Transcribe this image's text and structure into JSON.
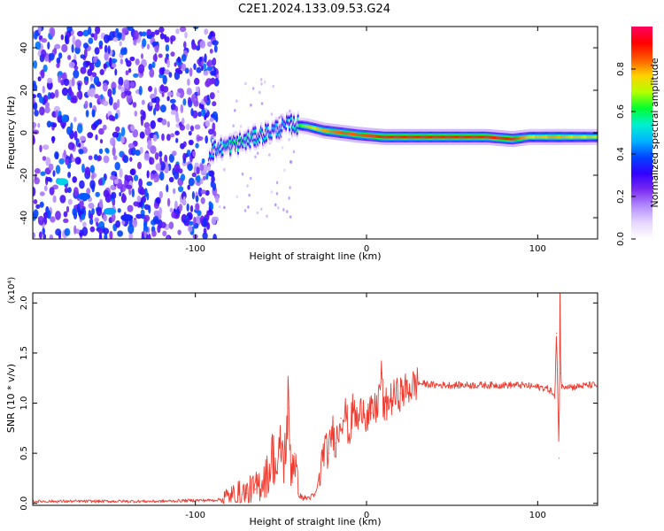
{
  "title": "C2E1.2024.133.09.53.G24",
  "chart_data": [
    {
      "type": "heatmap",
      "xlabel": "Height of straight line (km)",
      "ylabel": "Frequency (Hz)",
      "xlim": [
        -195,
        135
      ],
      "ylim": [
        -50,
        50
      ],
      "x_ticks": [
        -100,
        0,
        100
      ],
      "x_tick_labels": [
        "-100",
        "0",
        "100"
      ],
      "y_ticks": [
        -40,
        -20,
        0,
        20,
        40
      ],
      "y_tick_labels": [
        "-40",
        "-20",
        "0",
        "20",
        "40"
      ],
      "colorbar": {
        "label": "Normalized spectral amplitude",
        "range": [
          0,
          1
        ],
        "ticks": [
          0.0,
          0.2,
          0.4,
          0.6,
          0.8
        ],
        "tick_labels": [
          "0.0",
          "0.2",
          "0.4",
          "0.6",
          "0.8"
        ],
        "colors": [
          "#ffffff",
          "#e6d6ff",
          "#b38cff",
          "#7a2cf0",
          "#3300ff",
          "#0044ff",
          "#00b4ff",
          "#00f0d0",
          "#00ff30",
          "#b4ff00",
          "#ffd200",
          "#ff5a00",
          "#ff0000",
          "#ff0060"
        ]
      },
      "noise_region": {
        "x_from": -195,
        "x_to": -87,
        "freq_from": -50,
        "freq_to": 50,
        "amplitude": 0.3
      },
      "signal_track": [
        {
          "x": -92,
          "freq": -9,
          "amplitude": 0.45
        },
        {
          "x": -85,
          "freq": -7,
          "amplitude": 0.55
        },
        {
          "x": -75,
          "freq": -5,
          "amplitude": 0.6
        },
        {
          "x": -65,
          "freq": -2,
          "amplitude": 0.55
        },
        {
          "x": -55,
          "freq": 1,
          "amplitude": 0.5
        },
        {
          "x": -45,
          "freq": 4,
          "amplitude": 0.5
        },
        {
          "x": -35,
          "freq": 3,
          "amplitude": 0.7
        },
        {
          "x": -25,
          "freq": 1,
          "amplitude": 0.8
        },
        {
          "x": -15,
          "freq": 0,
          "amplitude": 0.85
        },
        {
          "x": -5,
          "freq": -1,
          "amplitude": 0.85
        },
        {
          "x": 10,
          "freq": -2,
          "amplitude": 0.9
        },
        {
          "x": 30,
          "freq": -2,
          "amplitude": 0.9
        },
        {
          "x": 50,
          "freq": -2,
          "amplitude": 0.9
        },
        {
          "x": 70,
          "freq": -2,
          "amplitude": 0.9
        },
        {
          "x": 85,
          "freq": -3,
          "amplitude": 0.9
        },
        {
          "x": 95,
          "freq": -2,
          "amplitude": 0.75
        },
        {
          "x": 110,
          "freq": -2,
          "amplitude": 0.8
        },
        {
          "x": 125,
          "freq": -2,
          "amplitude": 0.75
        },
        {
          "x": 135,
          "freq": -2,
          "amplitude": 0.7
        }
      ],
      "secondary_track": [
        {
          "x": -178,
          "freq": -23,
          "amplitude": 0.5
        },
        {
          "x": -165,
          "freq": -30,
          "amplitude": 0.4
        },
        {
          "x": -150,
          "freq": -37,
          "amplitude": 0.45
        },
        {
          "x": -140,
          "freq": -40,
          "amplitude": 0.35
        }
      ]
    },
    {
      "type": "line",
      "xlabel": "Height of straight line (km)",
      "ylabel": "SNR (10 * v/v)",
      "y_multiplier": "(x10⁴)",
      "xlim": [
        -195,
        135
      ],
      "ylim": [
        -0.02,
        2.1
      ],
      "x_ticks": [
        -100,
        0,
        100
      ],
      "x_tick_labels": [
        "-100",
        "0",
        "100"
      ],
      "y_ticks": [
        0.0,
        0.5,
        1.0,
        1.5,
        2.0
      ],
      "y_tick_labels": [
        "0.0",
        "0.5",
        "1.0",
        "1.5",
        "2.0"
      ],
      "color": "#ee3b30",
      "series": [
        {
          "x": [
            -195,
            -180,
            -160,
            -140,
            -120,
            -100,
            -90,
            -80,
            -75,
            -70,
            -65,
            -60,
            -57,
            -55,
            -52,
            -50,
            -48,
            -46,
            -44,
            -42,
            -40,
            -38,
            -35,
            -30,
            -27,
            -25,
            -22,
            -20,
            -18,
            -15,
            -12,
            -10,
            -8,
            -5,
            -2,
            0,
            3,
            6,
            9,
            10,
            12,
            15,
            20,
            25,
            30,
            40,
            50,
            60,
            70,
            80,
            90,
            95,
            100,
            105,
            108,
            110,
            111,
            112,
            112.5,
            113,
            113.5,
            114,
            115,
            118,
            120,
            125,
            130,
            135
          ],
          "y": [
            0.02,
            0.02,
            0.02,
            0.02,
            0.02,
            0.03,
            0.03,
            0.05,
            0.08,
            0.1,
            0.14,
            0.25,
            0.3,
            0.5,
            0.3,
            0.6,
            0.4,
            0.95,
            0.35,
            0.5,
            0.1,
            0.06,
            0.05,
            0.08,
            0.3,
            0.55,
            0.5,
            0.75,
            0.6,
            0.85,
            0.9,
            0.65,
            0.95,
            0.8,
            1.0,
            0.85,
            0.9,
            0.95,
            1.3,
            0.9,
            1.0,
            1.05,
            1.1,
            1.15,
            1.2,
            1.18,
            1.18,
            1.18,
            1.18,
            1.18,
            1.18,
            1.17,
            1.16,
            1.15,
            1.12,
            1.05,
            1.7,
            0.9,
            0.45,
            2.1,
            1.3,
            1.15,
            1.17,
            1.18,
            1.16,
            1.17,
            1.18,
            1.18
          ]
        }
      ]
    }
  ]
}
